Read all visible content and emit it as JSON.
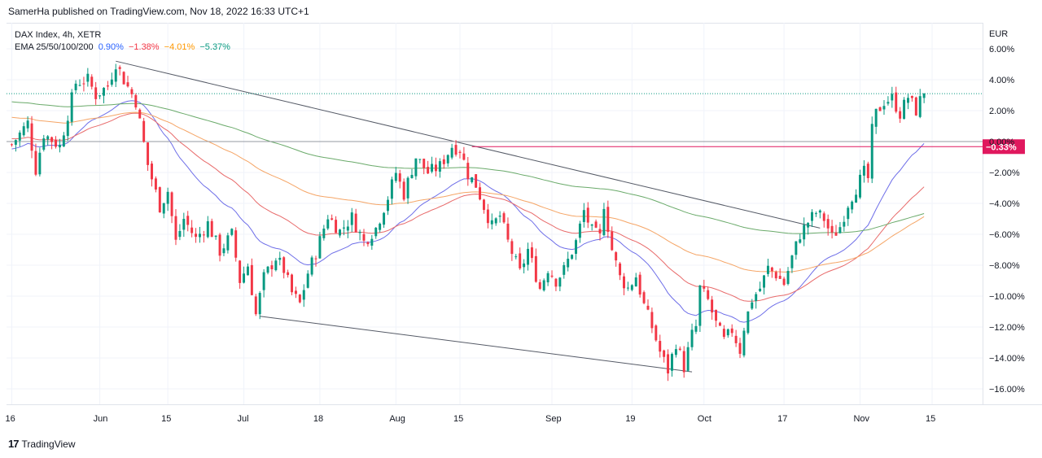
{
  "header": {
    "published": "SamerHa published on TradingView.com, Nov 18, 2022 16:33 UTC+1"
  },
  "legend": {
    "symbol": "DAX Index, 4h, XETR",
    "ema_label": "EMA 25/50/100/200",
    "ema_values": [
      {
        "text": "0.90%",
        "color": "#2962ff"
      },
      {
        "text": "−1.38%",
        "color": "#f23645"
      },
      {
        "text": "−4.01%",
        "color": "#ff9800"
      },
      {
        "text": "−5.37%",
        "color": "#089981"
      }
    ]
  },
  "footer": {
    "brand": "TradingView",
    "logo": "17"
  },
  "colors": {
    "up": "#089981",
    "down": "#f23645",
    "ema25": "#6e6ee8",
    "ema50": "#e86a6a",
    "ema100": "#f5a566",
    "ema200": "#6aaa6a",
    "marker": "#e0185e"
  },
  "chart_data": {
    "type": "candlestick",
    "title": "DAX Index, 4h, XETR",
    "ylabel": "EUR",
    "y_unit": "percent",
    "ylim": [
      -17,
      6.5
    ],
    "y_ticks": [
      "6.00%",
      "4.00%",
      "2.00%",
      "0.00%",
      "−2.00%",
      "−4.00%",
      "−6.00%",
      "−8.00%",
      "−10.00%",
      "−12.00%",
      "−14.00%",
      "−16.00%"
    ],
    "y_tick_values": [
      6,
      4,
      2,
      0,
      -2,
      -4,
      -6,
      -8,
      -10,
      -12,
      -14,
      -16
    ],
    "x_ticks": [
      "16",
      "Jun",
      "15",
      "Jul",
      "18",
      "Aug",
      "15",
      "Sep",
      "19",
      "Oct",
      "17",
      "Nov",
      "15"
    ],
    "x_tick_positions": [
      0,
      22,
      39,
      58,
      77,
      96,
      112,
      135,
      155,
      173,
      193,
      212,
      230
    ],
    "x_count": 236,
    "price_label": "−0.33%",
    "price_level": -0.33,
    "current_level": 3.1,
    "anchors": [
      [
        0,
        -0.2
      ],
      [
        4,
        1.2
      ],
      [
        6,
        -1.8
      ],
      [
        8,
        0.5
      ],
      [
        12,
        -0.3
      ],
      [
        16,
        3.8
      ],
      [
        19,
        4.0
      ],
      [
        21,
        3.0
      ],
      [
        24,
        3.6
      ],
      [
        26,
        5.1
      ],
      [
        28,
        4.0
      ],
      [
        31,
        2.6
      ],
      [
        34,
        -1.5
      ],
      [
        37,
        -4.2
      ],
      [
        39,
        -3.2
      ],
      [
        41,
        -6.5
      ],
      [
        43,
        -5.0
      ],
      [
        46,
        -6.3
      ],
      [
        49,
        -5.3
      ],
      [
        52,
        -7.1
      ],
      [
        55,
        -6.0
      ],
      [
        57,
        -9.0
      ],
      [
        59,
        -8.0
      ],
      [
        61,
        -11.2
      ],
      [
        63,
        -8.8
      ],
      [
        66,
        -7.5
      ],
      [
        68,
        -8.3
      ],
      [
        70,
        -9.8
      ],
      [
        72,
        -10.5
      ],
      [
        74,
        -8.5
      ],
      [
        76,
        -7.2
      ],
      [
        79,
        -4.8
      ],
      [
        82,
        -5.8
      ],
      [
        85,
        -4.9
      ],
      [
        88,
        -6.5
      ],
      [
        91,
        -5.6
      ],
      [
        94,
        -3.6
      ],
      [
        96,
        -2.0
      ],
      [
        98,
        -3.4
      ],
      [
        101,
        -1.0
      ],
      [
        104,
        -2.0
      ],
      [
        107,
        -1.6
      ],
      [
        110,
        -0.3
      ],
      [
        112,
        -0.5
      ],
      [
        114,
        -2.1
      ],
      [
        116,
        -2.8
      ],
      [
        118,
        -4.2
      ],
      [
        120,
        -5.5
      ],
      [
        122,
        -4.8
      ],
      [
        124,
        -6.5
      ],
      [
        127,
        -8.5
      ],
      [
        129,
        -7.0
      ],
      [
        132,
        -9.5
      ],
      [
        134,
        -8.2
      ],
      [
        136,
        -9.0
      ],
      [
        138,
        -8.3
      ],
      [
        141,
        -6.5
      ],
      [
        143,
        -4.5
      ],
      [
        145,
        -5.8
      ],
      [
        147,
        -6.2
      ],
      [
        148,
        -4.0
      ],
      [
        150,
        -7.0
      ],
      [
        152,
        -8.8
      ],
      [
        154,
        -9.5
      ],
      [
        156,
        -8.7
      ],
      [
        158,
        -10.6
      ],
      [
        160,
        -12.0
      ],
      [
        162,
        -13.6
      ],
      [
        164,
        -14.8
      ],
      [
        166,
        -13.0
      ],
      [
        168,
        -14.6
      ],
      [
        170,
        -12.5
      ],
      [
        171,
        -12.0
      ],
      [
        172,
        -9.5
      ],
      [
        174,
        -10.3
      ],
      [
        176,
        -11.8
      ],
      [
        178,
        -12.9
      ],
      [
        180,
        -12.2
      ],
      [
        182,
        -13.5
      ],
      [
        183,
        -12.0
      ],
      [
        185,
        -10.2
      ],
      [
        187,
        -9.5
      ],
      [
        189,
        -8.2
      ],
      [
        191,
        -8.6
      ],
      [
        193,
        -9.2
      ],
      [
        195,
        -7.5
      ],
      [
        197,
        -6.0
      ],
      [
        199,
        -5.2
      ],
      [
        201,
        -4.6
      ],
      [
        203,
        -5.0
      ],
      [
        205,
        -6.2
      ],
      [
        207,
        -5.5
      ],
      [
        209,
        -4.0
      ],
      [
        211,
        -3.0
      ],
      [
        213,
        -2.0
      ],
      [
        214,
        -2.4
      ],
      [
        215,
        0.7
      ],
      [
        216,
        1.8
      ],
      [
        218,
        2.6
      ],
      [
        220,
        2.8
      ],
      [
        222,
        1.8
      ],
      [
        224,
        2.9
      ],
      [
        226,
        2.0
      ],
      [
        228,
        3.3
      ]
    ],
    "series": [
      {
        "name": "EMA 25",
        "period": 25,
        "value": "0.90%"
      },
      {
        "name": "EMA 50",
        "period": 50,
        "value": "−1.38%"
      },
      {
        "name": "EMA 100",
        "period": 100,
        "value": "−4.01%"
      },
      {
        "name": "EMA 200",
        "period": 200,
        "value": "−5.37%"
      }
    ],
    "trendlines": [
      {
        "name": "upper-trendline",
        "from": [
          26,
          5.2
        ],
        "to": [
          202,
          -5.6
        ]
      },
      {
        "name": "lower-trendline",
        "from": [
          62,
          -11.3
        ],
        "to": [
          170,
          -14.9
        ]
      },
      {
        "name": "resistance-level",
        "from": [
          115,
          -0.33
        ],
        "to": [
          236,
          -0.33
        ]
      }
    ]
  }
}
